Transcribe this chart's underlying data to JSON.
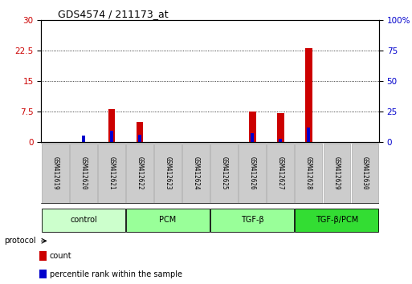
{
  "title": "GDS4574 / 211173_at",
  "samples": [
    "GSM412619",
    "GSM412620",
    "GSM412621",
    "GSM412622",
    "GSM412623",
    "GSM412624",
    "GSM412625",
    "GSM412626",
    "GSM412627",
    "GSM412628",
    "GSM412629",
    "GSM412630"
  ],
  "count_values": [
    0,
    0,
    8.0,
    5.0,
    0,
    0,
    0,
    7.5,
    7.0,
    23.0,
    0,
    0
  ],
  "percentile_values": [
    0,
    5.0,
    9.0,
    6.0,
    0,
    0,
    0,
    7.0,
    2.5,
    11.5,
    0,
    0
  ],
  "left_yticks": [
    0,
    7.5,
    15,
    22.5,
    30
  ],
  "right_yticks": [
    0,
    25,
    50,
    75,
    100
  ],
  "left_ylim": [
    0,
    30
  ],
  "right_ylim": [
    0,
    100
  ],
  "count_color": "#cc0000",
  "percentile_color": "#0000cc",
  "count_bar_width": 0.25,
  "pct_bar_width": 0.12,
  "groups": [
    {
      "label": "control",
      "start": 0,
      "end": 2,
      "color": "#ccffcc"
    },
    {
      "label": "PCM",
      "start": 3,
      "end": 5,
      "color": "#99ff99"
    },
    {
      "label": "TGF-β",
      "start": 6,
      "end": 8,
      "color": "#99ff99"
    },
    {
      "label": "TGF-β/PCM",
      "start": 9,
      "end": 11,
      "color": "#33dd33"
    }
  ],
  "protocol_label": "protocol",
  "legend_count": "count",
  "legend_pct": "percentile rank within the sample",
  "sample_box_color": "#cccccc",
  "sample_box_edge": "#aaaaaa"
}
